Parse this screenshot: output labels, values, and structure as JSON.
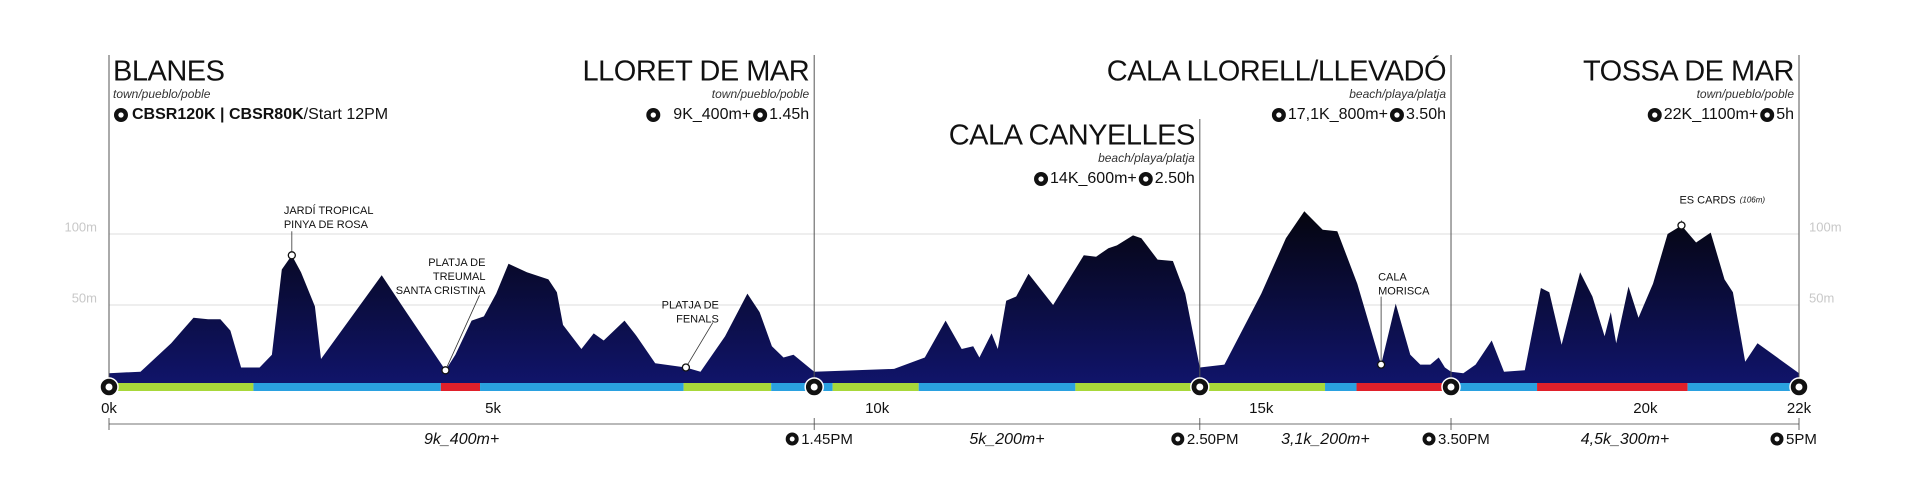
{
  "chart_data": {
    "type": "area",
    "color": "#10146a",
    "xlim": [
      0,
      22
    ],
    "ylim": [
      0,
      130
    ],
    "grid": true,
    "yticks": [
      {
        "value": 50,
        "label": "50m"
      },
      {
        "value": 100,
        "label": "100m"
      }
    ],
    "xticks": [
      {
        "value": 0,
        "label": "0k"
      },
      {
        "value": 5,
        "label": "5k"
      },
      {
        "value": 10,
        "label": "10k"
      },
      {
        "value": 15,
        "label": "15k"
      },
      {
        "value": 20,
        "label": "20k"
      },
      {
        "value": 22,
        "label": "22k"
      }
    ],
    "x": [
      0,
      0.41,
      0.81,
      0.97,
      1.1,
      1.29,
      1.45,
      1.58,
      1.72,
      1.96,
      2.12,
      2.25,
      2.38,
      2.5,
      2.68,
      2.76,
      3.55,
      3.87,
      4.38,
      4.51,
      4.72,
      4.88,
      5.04,
      5.2,
      5.44,
      5.72,
      5.83,
      5.91,
      6.15,
      6.31,
      6.44,
      6.71,
      6.87,
      7.11,
      7.51,
      7.7,
      8.02,
      8.31,
      8.47,
      8.63,
      8.78,
      8.91,
      9.18,
      10.22,
      10.62,
      10.89,
      11.1,
      11.25,
      11.33,
      11.49,
      11.57,
      11.68,
      11.81,
      11.97,
      12.29,
      12.69,
      12.85,
      13.01,
      13.12,
      13.33,
      13.44,
      13.65,
      13.85,
      14.01,
      14.2,
      14.52,
      15.0,
      15.32,
      15.56,
      15.8,
      15.99,
      16.25,
      16.56,
      16.75,
      16.94,
      17.07,
      17.2,
      17.31,
      17.39,
      17.47,
      17.63,
      17.79,
      18.0,
      18.16,
      18.43,
      18.64,
      18.75,
      18.91,
      19.15,
      19.31,
      19.47,
      19.55,
      19.62,
      19.78,
      19.91,
      20.1,
      20.29,
      20.47,
      20.66,
      20.85,
      21.03,
      21.14,
      21.3,
      21.46,
      22
    ],
    "values": [
      2,
      3,
      23,
      33,
      41,
      40,
      40,
      32,
      6,
      6,
      15,
      75,
      85,
      73,
      49,
      12,
      71,
      45,
      4,
      15,
      39,
      42,
      58,
      79,
      73,
      68,
      59,
      36,
      19,
      30,
      25,
      39,
      28,
      9,
      6,
      3,
      28,
      58,
      45,
      21,
      13,
      15,
      3,
      5,
      13,
      39,
      19,
      21,
      13,
      30,
      19,
      53,
      56,
      72,
      50,
      85,
      84,
      90,
      92,
      99,
      97,
      82,
      81,
      58,
      6,
      8,
      58,
      97,
      116,
      103,
      102,
      65,
      8,
      51,
      15,
      8,
      8,
      13,
      6,
      3,
      2,
      8,
      25,
      3,
      4,
      62,
      59,
      22,
      73,
      56,
      28,
      45,
      23,
      63,
      41,
      65,
      100,
      106,
      94,
      101,
      68,
      59,
      10,
      23,
      2
    ],
    "segments": [
      {
        "start": 0,
        "end": 1.88,
        "color": "#a8d83a"
      },
      {
        "start": 1.88,
        "end": 4.32,
        "color": "#2aa1e0"
      },
      {
        "start": 4.32,
        "end": 4.83,
        "color": "#e0202a"
      },
      {
        "start": 4.83,
        "end": 7.48,
        "color": "#2aa1e0"
      },
      {
        "start": 7.48,
        "end": 8.62,
        "color": "#a8d83a"
      },
      {
        "start": 8.62,
        "end": 9.42,
        "color": "#2aa1e0"
      },
      {
        "start": 9.42,
        "end": 10.54,
        "color": "#a8d83a"
      },
      {
        "start": 10.54,
        "end": 12.58,
        "color": "#2aa1e0"
      },
      {
        "start": 12.58,
        "end": 15.83,
        "color": "#a8d83a"
      },
      {
        "start": 15.83,
        "end": 16.24,
        "color": "#2aa1e0"
      },
      {
        "start": 16.24,
        "end": 17.47,
        "color": "#e0202a"
      },
      {
        "start": 17.47,
        "end": 18.59,
        "color": "#2aa1e0"
      },
      {
        "start": 18.59,
        "end": 20.55,
        "color": "#e0202a"
      },
      {
        "start": 20.55,
        "end": 22,
        "color": "#2aa1e0"
      }
    ],
    "locations": [
      {
        "name": "BLANES",
        "kind": "town/pueblo/poble",
        "x": 0,
        "route": "CBSR120K | CBSR80K",
        "start": "/Start 12PM"
      },
      {
        "name": "LLORET DE MAR",
        "kind": "town/pueblo/poble",
        "x": 9.18,
        "distance": "9K_400m+",
        "duration": "1.45h",
        "arrival": "1.45PM"
      },
      {
        "name": "CALA CANYELLES",
        "kind": "beach/playa/platja",
        "x": 14.2,
        "distance": "14K_600m+",
        "duration": "2.50h",
        "arrival": "2.50PM"
      },
      {
        "name": "CALA LLORELL/LLEVADÓ",
        "kind": "beach/playa/platja",
        "x": 17.47,
        "distance": "17,1K_800m+",
        "duration": "3.50h",
        "arrival": "3.50PM"
      },
      {
        "name": "TOSSA DE MAR",
        "kind": "town/pueblo/poble",
        "x": 22,
        "distance": "22K_1100m+",
        "duration": "5h",
        "arrival": "5PM"
      }
    ],
    "legs": [
      {
        "label": "9k_400m+"
      },
      {
        "label": "5k_200m+"
      },
      {
        "label": "3,1k_200m+"
      },
      {
        "label": "4,5k_300m+"
      }
    ],
    "annotations": [
      {
        "lines": [
          "JARDÍ TROPICAL",
          "PINYA DE ROSA"
        ],
        "x": 2.38,
        "y": 85
      },
      {
        "lines": [
          "PLATJA DE",
          "TREUMAL",
          "SANTA CRISTINA"
        ],
        "x": 4.38,
        "y": 4
      },
      {
        "lines": [
          "PLATJA DE",
          "FENALS"
        ],
        "x": 7.51,
        "y": 6
      },
      {
        "lines": [
          "CALA",
          "MORISCA"
        ],
        "x": 16.56,
        "y": 8
      },
      {
        "lines": [
          "ES CARDS"
        ],
        "note": "(106m)",
        "x": 20.47,
        "y": 106
      }
    ]
  }
}
